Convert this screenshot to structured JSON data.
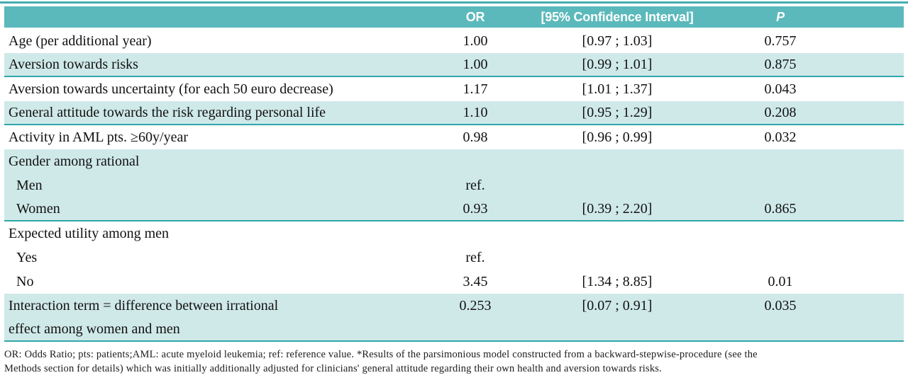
{
  "table": {
    "header": {
      "label": "",
      "or": "OR",
      "ci": "[95% Confidence Interval]",
      "p": "P"
    },
    "rows": [
      {
        "label": "Age (per additional year)",
        "or": "1.00",
        "ci": "[0.97 ; 1.03]",
        "p": "0.757",
        "shade": false,
        "indent": false,
        "rule": false
      },
      {
        "label": "Aversion towards risks",
        "or": "1.00",
        "ci": "[0.99 ; 1.01]",
        "p": "0.875",
        "shade": true,
        "indent": false,
        "rule": true
      },
      {
        "label": "Aversion towards uncertainty (for each 50 euro decrease)",
        "or": "1.17",
        "ci": "[1.01 ; 1.37]",
        "p": "0.043",
        "shade": false,
        "indent": false,
        "rule": false
      },
      {
        "label": "General attitude towards the risk regarding personal life",
        "or": "1.10",
        "ci": "[0.95 ; 1.29]",
        "p": "0.208",
        "shade": true,
        "indent": false,
        "rule": true
      },
      {
        "label": "Activity in AML pts. ≥60y/year",
        "or": "0.98",
        "ci": "[0.96 ; 0.99]",
        "p": "0.032",
        "shade": false,
        "indent": false,
        "rule": false
      },
      {
        "label": "Gender among rational",
        "or": "",
        "ci": "",
        "p": "",
        "shade": true,
        "indent": false,
        "rule": false
      },
      {
        "label": "Men",
        "or": "ref.",
        "ci": "",
        "p": "",
        "shade": true,
        "indent": true,
        "rule": false
      },
      {
        "label": "Women",
        "or": "0.93",
        "ci": "[0.39 ; 2.20]",
        "p": "0.865",
        "shade": true,
        "indent": true,
        "rule": true
      },
      {
        "label": "Expected utility among men",
        "or": "",
        "ci": "",
        "p": "",
        "shade": false,
        "indent": false,
        "rule": false
      },
      {
        "label": "Yes",
        "or": "ref.",
        "ci": "",
        "p": "",
        "shade": false,
        "indent": true,
        "rule": false
      },
      {
        "label": "No",
        "or": "3.45",
        "ci": "[1.34 ; 8.85]",
        "p": "0.01",
        "shade": false,
        "indent": true,
        "rule": false
      },
      {
        "label": "Interaction term = difference between irrational",
        "or": "0.253",
        "ci": "[0.07 ; 0.91]",
        "p": "0.035",
        "shade": true,
        "indent": false,
        "rule": false
      },
      {
        "label": "effect among women and men",
        "or": "",
        "ci": "",
        "p": "",
        "shade": true,
        "indent": false,
        "rule": true
      }
    ],
    "footnote_lines": [
      "OR: Odds Ratio; pts: patients;AML: acute myeloid leukemia; ref: reference value. *Results of the parsimonious model constructed from a backward-stepwise-procedure (see the",
      "Methods section for details) which was initially additionally adjusted for clinicians' general attitude regarding their own health and aversion towards risks."
    ]
  },
  "colors": {
    "header_teal": "#5bb9bb",
    "row_shade_teal": "#cfe9e8",
    "rule_teal": "#2fa7aa",
    "top_rule_teal": "#45aeb1",
    "text": "#111111"
  }
}
